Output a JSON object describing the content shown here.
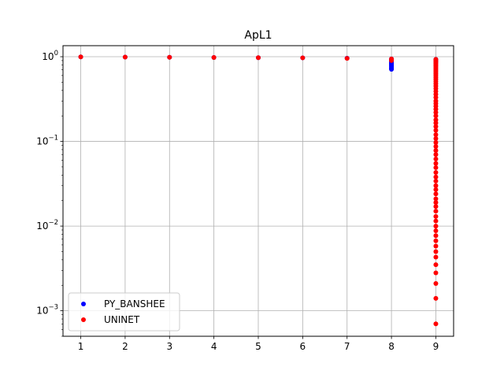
{
  "chart_data": {
    "type": "scatter",
    "title": "ApL1",
    "xlabel": "",
    "ylabel": "",
    "xlim": [
      0.6,
      9.4
    ],
    "ylim": [
      0.0005,
      1.35
    ],
    "yscale": "log",
    "grid": true,
    "legend_position": "lower-left",
    "x_ticks": [
      1,
      2,
      3,
      4,
      5,
      6,
      7,
      8,
      9
    ],
    "x_tick_labels": [
      "1",
      "2",
      "3",
      "4",
      "5",
      "6",
      "7",
      "8",
      "9"
    ],
    "y_ticks": [
      {
        "value": 1,
        "base": "10",
        "exp": "0"
      },
      {
        "value": 0.1,
        "base": "10",
        "exp": "−1"
      },
      {
        "value": 0.01,
        "base": "10",
        "exp": "−2"
      },
      {
        "value": 0.001,
        "base": "10",
        "exp": "−3"
      }
    ],
    "series": [
      {
        "name": "PY_BANSHEE",
        "color": "#0000ff",
        "points": [
          [
            1,
            0.995
          ],
          [
            2,
            0.99
          ],
          [
            3,
            0.985
          ],
          [
            4,
            0.98
          ],
          [
            5,
            0.975
          ],
          [
            6,
            0.97
          ],
          [
            7,
            0.96
          ],
          [
            8,
            0.94
          ],
          [
            8,
            0.92
          ],
          [
            8,
            0.9
          ],
          [
            8,
            0.88
          ],
          [
            8,
            0.86
          ],
          [
            8,
            0.84
          ],
          [
            8,
            0.82
          ],
          [
            8,
            0.8
          ],
          [
            8,
            0.78
          ],
          [
            8,
            0.76
          ],
          [
            8,
            0.74
          ],
          [
            8,
            0.72
          ],
          [
            8,
            0.71
          ],
          [
            9,
            0.93
          ],
          [
            9,
            0.9
          ],
          [
            9,
            0.87
          ]
        ]
      },
      {
        "name": "UNINET",
        "color": "#ff0000",
        "points": [
          [
            1,
            0.995
          ],
          [
            2,
            0.99
          ],
          [
            3,
            0.985
          ],
          [
            4,
            0.98
          ],
          [
            5,
            0.975
          ],
          [
            6,
            0.97
          ],
          [
            7,
            0.955
          ],
          [
            8,
            0.94
          ],
          [
            8,
            0.9
          ],
          [
            9,
            0.93
          ],
          [
            9,
            0.9
          ],
          [
            9,
            0.87
          ],
          [
            9,
            0.84
          ],
          [
            9,
            0.81
          ],
          [
            9,
            0.78
          ],
          [
            9,
            0.75
          ],
          [
            9,
            0.72
          ],
          [
            9,
            0.69
          ],
          [
            9,
            0.66
          ],
          [
            9,
            0.63
          ],
          [
            9,
            0.6
          ],
          [
            9,
            0.57
          ],
          [
            9,
            0.54
          ],
          [
            9,
            0.51
          ],
          [
            9,
            0.48
          ],
          [
            9,
            0.45
          ],
          [
            9,
            0.42
          ],
          [
            9,
            0.39
          ],
          [
            9,
            0.36
          ],
          [
            9,
            0.33
          ],
          [
            9,
            0.3
          ],
          [
            9,
            0.28
          ],
          [
            9,
            0.26
          ],
          [
            9,
            0.24
          ],
          [
            9,
            0.22
          ],
          [
            9,
            0.2
          ],
          [
            9,
            0.18
          ],
          [
            9,
            0.165
          ],
          [
            9,
            0.15
          ],
          [
            9,
            0.135
          ],
          [
            9,
            0.12
          ],
          [
            9,
            0.108
          ],
          [
            9,
            0.097
          ],
          [
            9,
            0.087
          ],
          [
            9,
            0.078
          ],
          [
            9,
            0.07
          ],
          [
            9,
            0.062
          ],
          [
            9,
            0.055
          ],
          [
            9,
            0.049
          ],
          [
            9,
            0.043
          ],
          [
            9,
            0.038
          ],
          [
            9,
            0.034
          ],
          [
            9,
            0.03
          ],
          [
            9,
            0.027
          ],
          [
            9,
            0.024
          ],
          [
            9,
            0.021
          ],
          [
            9,
            0.019
          ],
          [
            9,
            0.017
          ],
          [
            9,
            0.015
          ],
          [
            9,
            0.013
          ],
          [
            9,
            0.0115
          ],
          [
            9,
            0.01
          ],
          [
            9,
            0.0088
          ],
          [
            9,
            0.0077
          ],
          [
            9,
            0.0067
          ],
          [
            9,
            0.0058
          ],
          [
            9,
            0.005
          ],
          [
            9,
            0.0043
          ],
          [
            9,
            0.0035
          ],
          [
            9,
            0.0028
          ],
          [
            9,
            0.0021
          ],
          [
            9,
            0.0014
          ],
          [
            9,
            0.0007
          ]
        ]
      }
    ]
  }
}
